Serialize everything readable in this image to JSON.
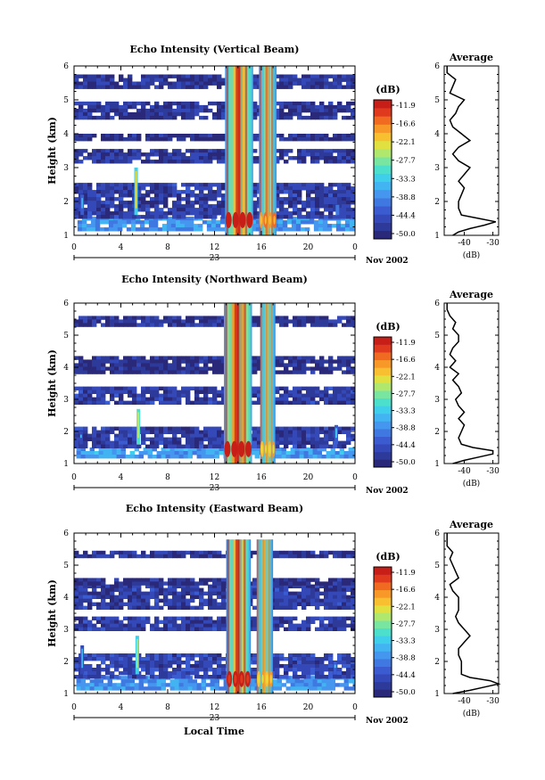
{
  "xlabel": "Local Time",
  "date_day": "23",
  "date_label": "Nov 2002",
  "colorbar": {
    "label": "(dB)",
    "ticks": [
      "-11.9",
      "-16.6",
      "-22.1",
      "-27.7",
      "-33.3",
      "-38.8",
      "-44.4",
      "-50.0"
    ],
    "colors": [
      "#2a2878",
      "#2e3a9a",
      "#3448b8",
      "#3b5cd0",
      "#3f78e0",
      "#4496ee",
      "#42b4f2",
      "#3fcfea",
      "#4ce0cc",
      "#78e6a0",
      "#b0e86e",
      "#e0e040",
      "#f8c030",
      "#f89828",
      "#f06a22",
      "#e03a1e",
      "#c81e18"
    ]
  },
  "chart_data": [
    {
      "type": "heatmap",
      "title": "Echo Intensity (Vertical Beam)",
      "ylabel": "Height (km)",
      "xlabel": "Local Time",
      "x_ticks": [
        "0",
        "4",
        "8",
        "12",
        "16",
        "20",
        "0"
      ],
      "y_ticks": [
        "1",
        "2",
        "3",
        "4",
        "5",
        "6"
      ],
      "xlim": [
        0,
        24
      ],
      "ylim": [
        1,
        6
      ],
      "color_unit": "dB",
      "color_range": [
        -50.0,
        -11.9
      ],
      "layers": [
        {
          "y": [
            1.2,
            1.55
          ],
          "x": [
            0.3,
            24
          ],
          "db": -38
        },
        {
          "y": [
            1.55,
            2.55
          ],
          "x": [
            0,
            24
          ],
          "db": -46
        },
        {
          "y": [
            3.2,
            3.55
          ],
          "x": [
            0,
            24
          ],
          "db": -47
        },
        {
          "y": [
            3.8,
            4.0
          ],
          "x": [
            0,
            24
          ],
          "db": -48
        },
        {
          "y": [
            4.45,
            4.95
          ],
          "x": [
            0,
            24
          ],
          "db": -47
        },
        {
          "y": [
            5.4,
            5.75
          ],
          "x": [
            0,
            24
          ],
          "db": -47
        }
      ],
      "convection": [
        {
          "t0": 12.9,
          "t1": 15.3,
          "top": 6.0,
          "base_db": -30,
          "core_db": -12
        },
        {
          "t0": 15.8,
          "t1": 17.3,
          "top": 6.0,
          "base_db": -33,
          "core_db": -20
        }
      ],
      "spikes": [
        {
          "t": 5.3,
          "top": 3.0,
          "db": -25
        },
        {
          "t": 0.7,
          "top": 2.2,
          "db": -35
        },
        {
          "t": 22.5,
          "top": 1.9,
          "db": -33
        }
      ],
      "profile": {
        "title": "Average",
        "xlabel": "(dB)",
        "x_ticks": [
          "-40",
          "-30"
        ],
        "xlim": [
          -47,
          -28
        ],
        "ylim": [
          1,
          6
        ],
        "heights": [
          1.0,
          1.1,
          1.2,
          1.3,
          1.4,
          1.5,
          1.6,
          1.8,
          2.0,
          2.2,
          2.4,
          2.6,
          2.8,
          3.0,
          3.2,
          3.4,
          3.6,
          3.8,
          4.0,
          4.2,
          4.4,
          4.6,
          4.8,
          5.0,
          5.2,
          5.4,
          5.6,
          5.8,
          6.0
        ],
        "values": [
          -44,
          -42,
          -38,
          -33,
          -29,
          -35,
          -41,
          -42,
          -42,
          -41,
          -40,
          -42,
          -40,
          -38,
          -42,
          -44,
          -42,
          -38,
          -41,
          -44,
          -45,
          -43,
          -42,
          -40,
          -45,
          -44,
          -43,
          -46,
          -46
        ]
      }
    },
    {
      "type": "heatmap",
      "title": "Echo Intensity (Northward Beam)",
      "ylabel": "Height (km)",
      "xlabel": "Local Time",
      "x_ticks": [
        "0",
        "4",
        "8",
        "12",
        "16",
        "20",
        "0"
      ],
      "y_ticks": [
        "1",
        "2",
        "3",
        "4",
        "5",
        "6"
      ],
      "xlim": [
        0,
        24
      ],
      "ylim": [
        1,
        6
      ],
      "color_unit": "dB",
      "color_range": [
        -50.0,
        -11.9
      ],
      "layers": [
        {
          "y": [
            1.2,
            1.5
          ],
          "x": [
            0.2,
            24
          ],
          "db": -37
        },
        {
          "y": [
            1.5,
            2.15
          ],
          "x": [
            0,
            24
          ],
          "db": -46
        },
        {
          "y": [
            2.95,
            3.4
          ],
          "x": [
            0,
            24
          ],
          "db": -46
        },
        {
          "y": [
            3.9,
            4.35
          ],
          "x": [
            0,
            24
          ],
          "db": -48
        },
        {
          "y": [
            5.3,
            5.6
          ],
          "x": [
            0,
            24
          ],
          "db": -47
        }
      ],
      "convection": [
        {
          "t0": 12.8,
          "t1": 15.2,
          "top": 6.0,
          "base_db": -29,
          "core_db": -12
        },
        {
          "t0": 15.9,
          "t1": 17.2,
          "top": 6.0,
          "base_db": -34,
          "core_db": -22
        }
      ],
      "spikes": [
        {
          "t": 5.5,
          "top": 2.7,
          "db": -24
        },
        {
          "t": 0.6,
          "top": 2.0,
          "db": -36
        },
        {
          "t": 22.4,
          "top": 2.2,
          "db": -34
        }
      ],
      "profile": {
        "title": "Average",
        "xlabel": "(dB)",
        "x_ticks": [
          "-40",
          "-30"
        ],
        "xlim": [
          -47,
          -28
        ],
        "ylim": [
          1,
          6
        ],
        "heights": [
          1.0,
          1.1,
          1.2,
          1.3,
          1.4,
          1.5,
          1.6,
          1.8,
          2.0,
          2.2,
          2.4,
          2.6,
          2.8,
          3.0,
          3.2,
          3.4,
          3.6,
          3.8,
          4.0,
          4.2,
          4.4,
          4.6,
          4.8,
          5.0,
          5.2,
          5.4,
          5.6,
          5.8,
          6.0
        ],
        "values": [
          -44,
          -40,
          -35,
          -30,
          -30,
          -37,
          -41,
          -42,
          -41,
          -40,
          -42,
          -40,
          -42,
          -43,
          -41,
          -42,
          -44,
          -42,
          -45,
          -43,
          -45,
          -44,
          -42,
          -42,
          -44,
          -43,
          -45,
          -46,
          -46
        ]
      }
    },
    {
      "type": "heatmap",
      "title": "Echo Intensity (Eastward Beam)",
      "ylabel": "Height (km)",
      "xlabel": "Local Time",
      "x_ticks": [
        "0",
        "4",
        "8",
        "12",
        "16",
        "20",
        "0"
      ],
      "y_ticks": [
        "1",
        "2",
        "3",
        "4",
        "5",
        "6"
      ],
      "xlim": [
        0,
        24
      ],
      "ylim": [
        1,
        6
      ],
      "color_unit": "dB",
      "color_range": [
        -50.0,
        -11.9
      ],
      "layers": [
        {
          "y": [
            1.2,
            1.55
          ],
          "x": [
            0.2,
            24
          ],
          "db": -38
        },
        {
          "y": [
            1.55,
            2.25
          ],
          "x": [
            0,
            24
          ],
          "db": -45
        },
        {
          "y": [
            3.0,
            3.4
          ],
          "x": [
            0,
            24
          ],
          "db": -46
        },
        {
          "y": [
            3.65,
            4.4
          ],
          "x": [
            0,
            24
          ],
          "db": -46
        },
        {
          "y": [
            4.45,
            4.6
          ],
          "x": [
            0,
            24
          ],
          "db": -48
        },
        {
          "y": [
            5.3,
            5.45
          ],
          "x": [
            0,
            24
          ],
          "db": -47
        }
      ],
      "convection": [
        {
          "t0": 13.0,
          "t1": 15.1,
          "top": 5.8,
          "base_db": -31,
          "core_db": -13
        },
        {
          "t0": 15.6,
          "t1": 17.0,
          "top": 5.8,
          "base_db": -34,
          "core_db": -22
        }
      ],
      "spikes": [
        {
          "t": 5.4,
          "top": 2.8,
          "db": -26
        },
        {
          "t": 0.7,
          "top": 2.5,
          "db": -36
        },
        {
          "t": 22.3,
          "top": 2.0,
          "db": -34
        }
      ],
      "profile": {
        "title": "Average",
        "xlabel": "(dB)",
        "x_ticks": [
          "-40",
          "-30"
        ],
        "xlim": [
          -47,
          -28
        ],
        "ylim": [
          1,
          6
        ],
        "heights": [
          1.0,
          1.1,
          1.2,
          1.3,
          1.4,
          1.5,
          1.6,
          1.8,
          2.0,
          2.2,
          2.4,
          2.6,
          2.8,
          3.0,
          3.2,
          3.4,
          3.6,
          3.8,
          4.0,
          4.2,
          4.4,
          4.6,
          4.8,
          5.0,
          5.2,
          5.4,
          5.6,
          5.8,
          6.0
        ],
        "values": [
          -44,
          -38,
          -33,
          -28,
          -31,
          -38,
          -41,
          -41,
          -41,
          -42,
          -42,
          -40,
          -38,
          -40,
          -42,
          -43,
          -42,
          -42,
          -42,
          -44,
          -45,
          -42,
          -43,
          -44,
          -45,
          -44,
          -46,
          -46,
          -46
        ]
      }
    }
  ]
}
